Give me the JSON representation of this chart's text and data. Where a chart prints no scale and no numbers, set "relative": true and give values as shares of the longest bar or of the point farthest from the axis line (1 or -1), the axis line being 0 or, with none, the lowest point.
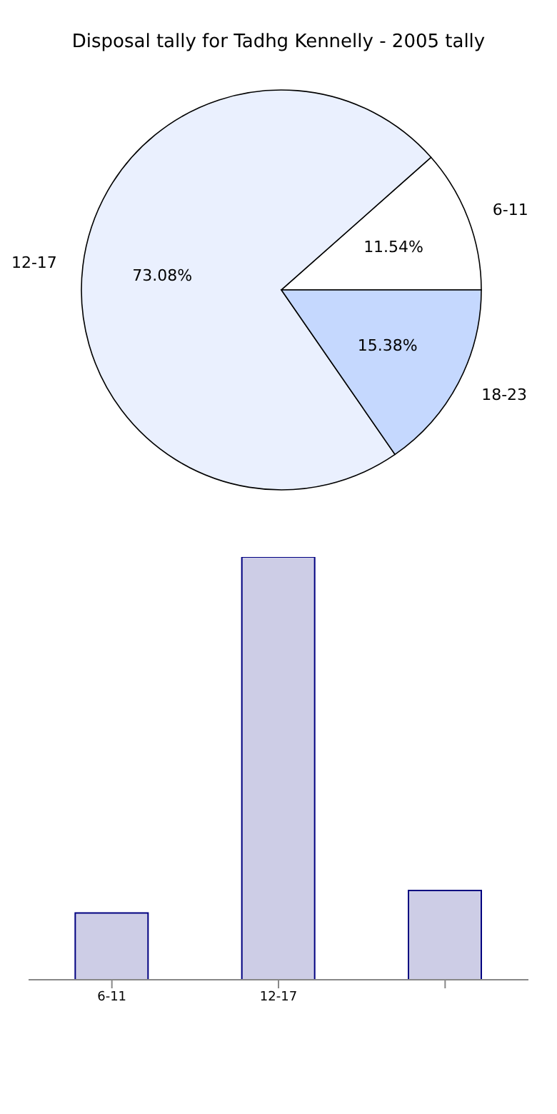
{
  "chart_data": [
    {
      "type": "pie",
      "title": "Disposal tally for Tadhg Kennelly - 2005 tally",
      "categories": [
        "6-11",
        "12-17",
        "18-23"
      ],
      "values": [
        11.54,
        73.08,
        15.38
      ],
      "colors": [
        "#ffffff",
        "#eaf0fe",
        "#c5d8fe"
      ],
      "value_labels": [
        "11.54%",
        "73.08%",
        "15.38%"
      ]
    },
    {
      "type": "bar",
      "categories": [
        "6-11",
        "12-17",
        null
      ],
      "values": [
        0.158,
        1,
        0.211
      ],
      "color": "#cdcde6",
      "relative": true
    }
  ]
}
